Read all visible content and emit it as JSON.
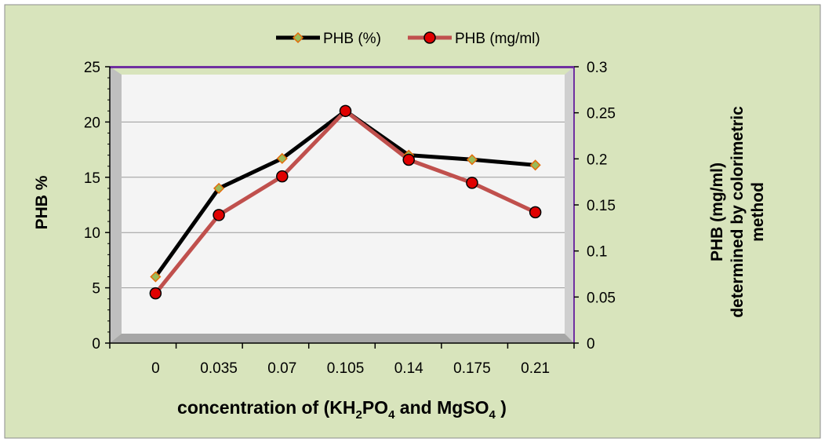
{
  "chart_data": {
    "type": "line",
    "categories": [
      "0",
      "0.035",
      "0.07",
      "0.105",
      "0.14",
      "0.175",
      "0.21"
    ],
    "series": [
      {
        "name": "PHB (%)",
        "axis": "left",
        "values": [
          6,
          14,
          16.7,
          21,
          17,
          16.6,
          16.1
        ],
        "line_color": "#000000",
        "marker": "diamond",
        "marker_fill": "#9bbb59",
        "marker_stroke": "#e46c0a"
      },
      {
        "name": "PHB (mg/ml)",
        "axis": "right",
        "values": [
          0.054,
          0.139,
          0.181,
          0.252,
          0.199,
          0.174,
          0.142
        ],
        "line_color": "#c0504d",
        "marker": "circle",
        "marker_fill": "#e00000",
        "marker_stroke": "#000000"
      }
    ],
    "xlabel": {
      "pre": "concentration of (KH",
      "sub1": "2",
      "mid1": "PO",
      "sub2": "4",
      "mid2": " and MgSO",
      "sub3": "4",
      "post": " )"
    },
    "ylabel_left": "PHB %",
    "ylabel_right": [
      "PHB (mg/ml)",
      "determined by colorimetric",
      "method"
    ],
    "ylim_left": [
      0,
      25
    ],
    "yticks_left": [
      "0",
      "5",
      "10",
      "15",
      "20",
      "25"
    ],
    "ylim_right": [
      0,
      0.3
    ],
    "yticks_right": [
      "0",
      "0.05",
      "0.1",
      "0.15",
      "0.2",
      "0.25",
      "0.3"
    ],
    "grid": true,
    "legend_position": "top",
    "colors": {
      "background": "#d8e4bc",
      "plot_border": "#7030a0",
      "grid": "#9a9a9a",
      "wall": "#e8e8e8"
    }
  }
}
